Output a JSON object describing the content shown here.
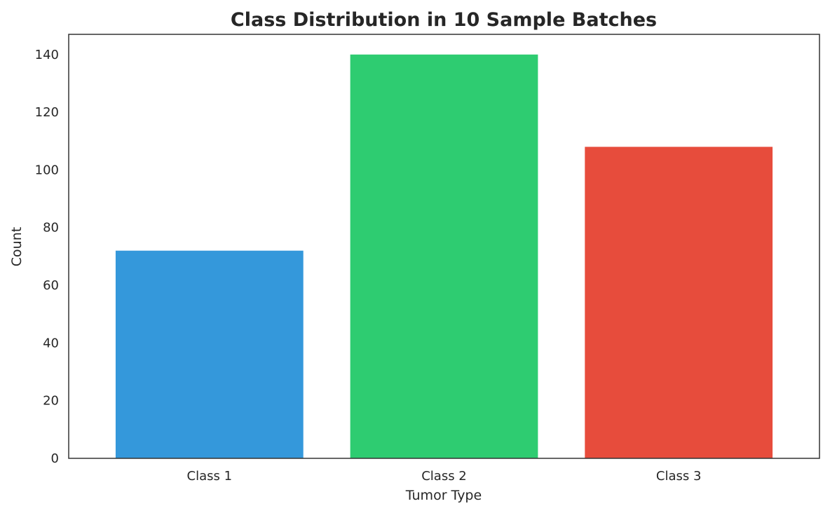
{
  "chart_data": {
    "type": "bar",
    "title": "Class Distribution in 10 Sample Batches",
    "xlabel": "Tumor Type",
    "ylabel": "Count",
    "categories": [
      "Class 1",
      "Class 2",
      "Class 3"
    ],
    "values": [
      72,
      140,
      108
    ],
    "colors": [
      "#3498db",
      "#2ecc71",
      "#e74c3c"
    ],
    "ylim": [
      0,
      147
    ],
    "yticks": [
      0,
      20,
      40,
      60,
      80,
      100,
      120,
      140
    ],
    "grid": false,
    "legend": "none"
  }
}
